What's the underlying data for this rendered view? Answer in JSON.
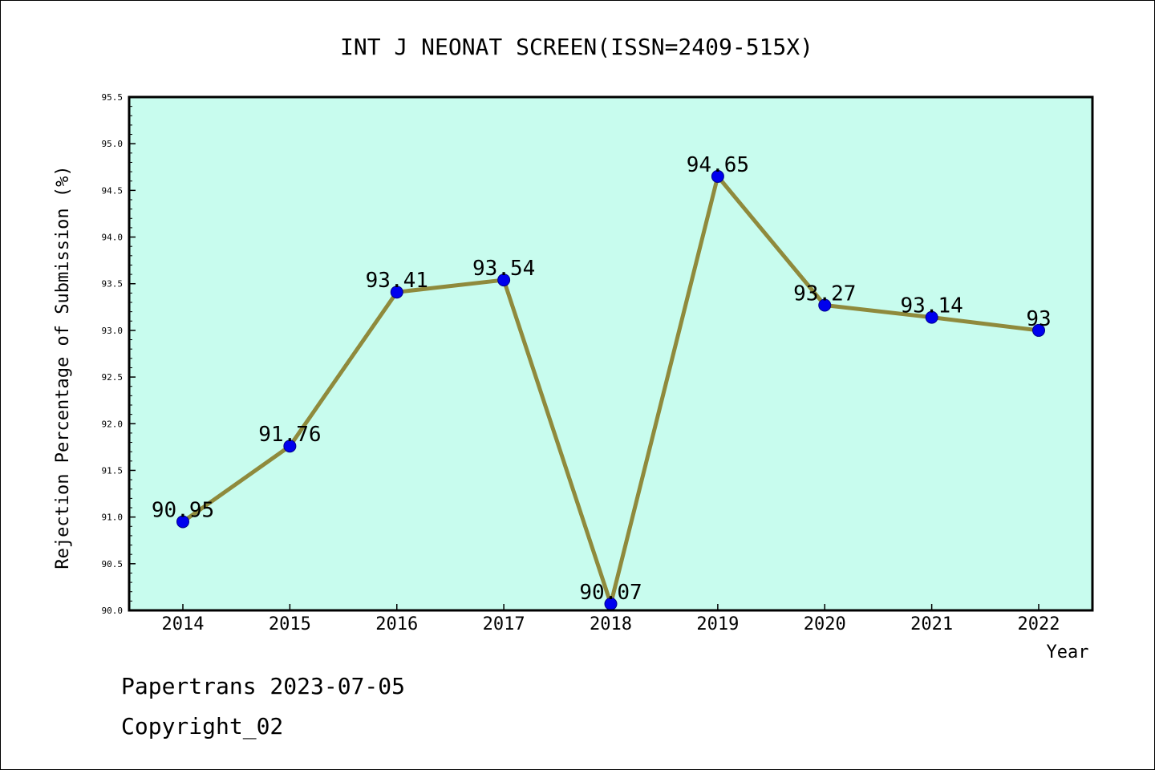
{
  "chart_data": {
    "type": "line",
    "title": "INT J NEONAT SCREEN(ISSN=2409-515X)",
    "xlabel": "Year",
    "ylabel": "Rejection Percentage of Submission (%)",
    "categories": [
      "2014",
      "2015",
      "2016",
      "2017",
      "2018",
      "2019",
      "2020",
      "2021",
      "2022"
    ],
    "series": [
      {
        "values": [
          90.95,
          91.76,
          93.41,
          93.54,
          90.07,
          94.65,
          93.27,
          93.14,
          93
        ]
      }
    ],
    "data_labels": [
      "90.95",
      "91.76",
      "93.41",
      "93.54",
      "90.07",
      "94.65",
      "93.27",
      "93.14",
      "93"
    ],
    "ylim": [
      90.0,
      95.5
    ],
    "yticks": [
      "90.0",
      "90.5",
      "91.0",
      "91.5",
      "92.0",
      "92.5",
      "93.0",
      "93.5",
      "94.0",
      "94.5",
      "95.0",
      "95.5"
    ],
    "grid": false,
    "colors": {
      "plot_background": "#c8fcee",
      "line": "#8f8a3c",
      "marker": "#0000ee"
    }
  },
  "footer": {
    "line1": "Papertrans 2023-07-05",
    "line2": "Copyright_02"
  }
}
